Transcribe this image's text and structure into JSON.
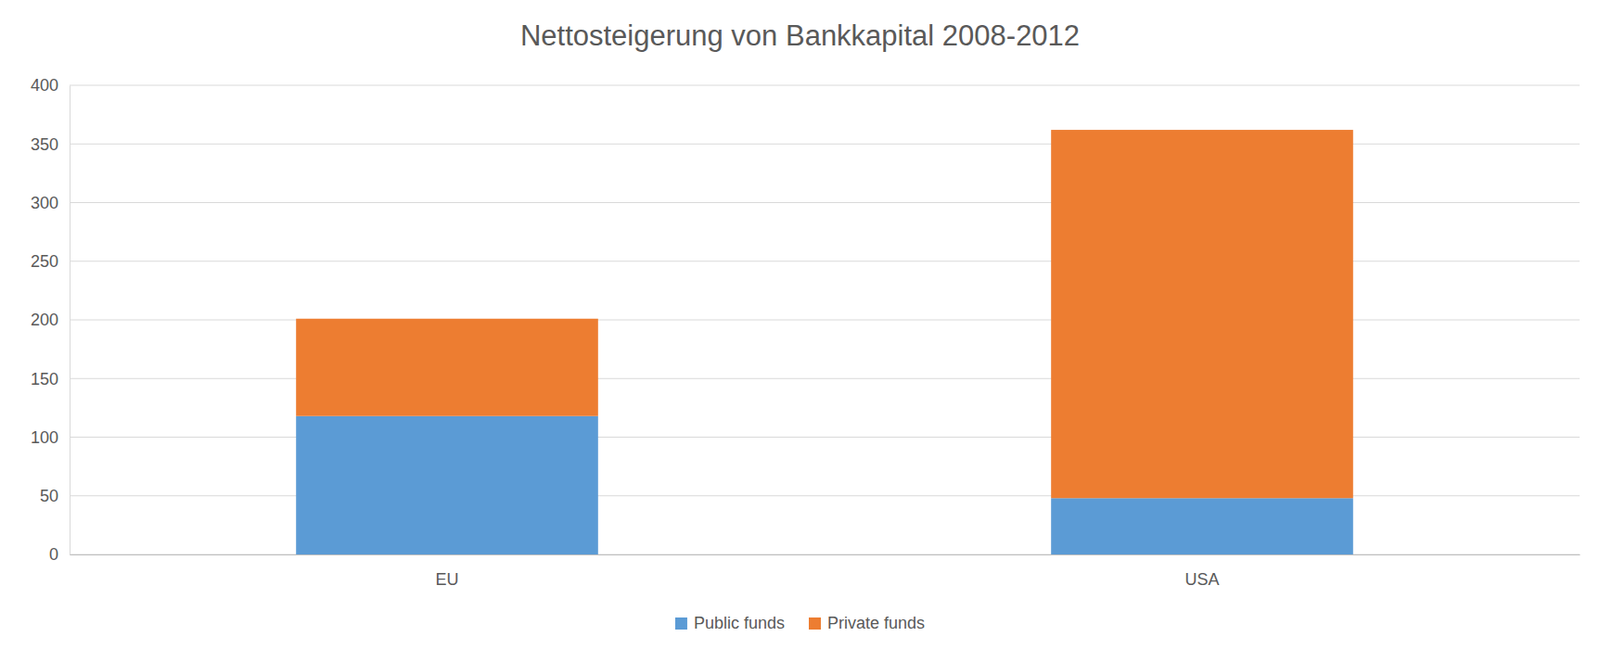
{
  "chart_data": {
    "type": "bar",
    "title": "Nettosteigerung von Bankkapital 2008-2012",
    "categories": [
      "EU",
      "USA"
    ],
    "series": [
      {
        "name": "Public funds",
        "color": "#5b9bd5",
        "values": [
          118,
          48
        ]
      },
      {
        "name": "Private funds",
        "color": "#ed7d31",
        "values": [
          83,
          314
        ]
      }
    ],
    "stacked": true,
    "ylim": [
      0,
      400
    ],
    "yticks": [
      0,
      50,
      100,
      150,
      200,
      250,
      300,
      350,
      400
    ],
    "grid": true,
    "legend": "bottom"
  }
}
